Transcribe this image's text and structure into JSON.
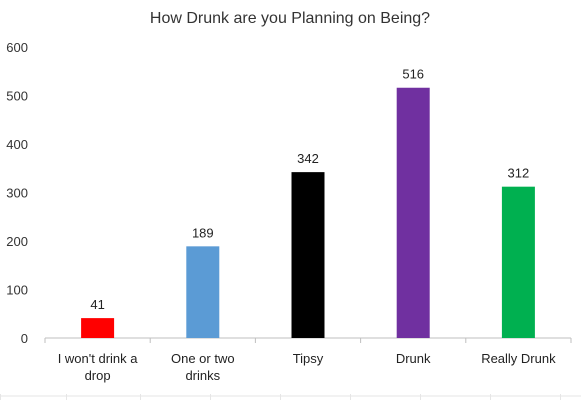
{
  "chart_data": {
    "type": "bar",
    "title": "How Drunk are you Planning on Being?",
    "xlabel": "",
    "ylabel": "",
    "categories": [
      [
        "I won't drink a",
        "drop"
      ],
      [
        "One or two",
        "drinks"
      ],
      [
        "Tipsy"
      ],
      [
        "Drunk"
      ],
      [
        "Really Drunk"
      ]
    ],
    "values": [
      41,
      189,
      342,
      516,
      312
    ],
    "data_labels": [
      "41",
      "189",
      "342",
      "516",
      "312"
    ],
    "bar_colors": [
      "#ff0000",
      "#5b9bd5",
      "#000000",
      "#7030a0",
      "#00b050"
    ],
    "ylim": [
      0,
      600
    ],
    "yticks": [
      0,
      100,
      200,
      300,
      400,
      500,
      600
    ],
    "grid": false,
    "legend": "none"
  }
}
